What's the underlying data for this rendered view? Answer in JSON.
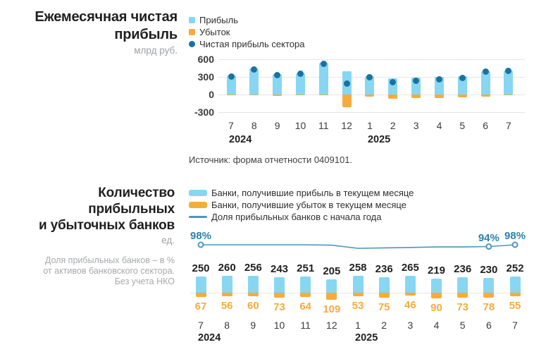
{
  "colors": {
    "profit_blue": "#87D7F3",
    "loss_orange": "#F6AC3B",
    "net_dot_blue": "#1973A2",
    "share_line": "#4C96BC",
    "pct_label": "#2E81A8",
    "title_text": "#1F1F1F",
    "muted_text": "#A7A9AC",
    "axis_text": "#3A3A3A",
    "gridline": "#E6E6E6"
  },
  "top_chart": {
    "title": "Ежемесячная чистая\nприбыль",
    "unit": "млрд руб.",
    "legend": [
      {
        "label": "Прибыль"
      },
      {
        "label": "Убыток"
      },
      {
        "label": "Чистая прибыль сектора"
      }
    ],
    "source": "Источник: форма отчетности 0409101."
  },
  "bottom_chart": {
    "title": "Количество\nприбыльных\nи убыточных банков",
    "unit": "ед.",
    "note": "Доля прибыльных банков – в %\nот активов банковского сектора.\nБез учета НКО",
    "legend": [
      {
        "label": "Банки, получившие прибыль в текущем месяце"
      },
      {
        "label": "Банки, получившие убыток в текущем месяце"
      },
      {
        "label": "Доля прибыльных банков с начала года"
      }
    ]
  },
  "chart_data": [
    {
      "type": "bar",
      "title": "Ежемесячная чистая прибыль",
      "ylabel": "млрд руб.",
      "categories": [
        "7",
        "8",
        "9",
        "10",
        "11",
        "12",
        "1",
        "2",
        "3",
        "4",
        "5",
        "6",
        "7"
      ],
      "year_marks": [
        {
          "label": "2024",
          "index": 0
        },
        {
          "label": "2025",
          "index": 6
        }
      ],
      "ylim": [
        -300,
        600
      ],
      "yticks": [
        600,
        300,
        0,
        -300
      ],
      "grid": true,
      "legend_position": "top-right",
      "series": [
        {
          "name": "Прибыль",
          "type": "bar",
          "color_key": "profit_blue",
          "values": [
            325,
            440,
            350,
            365,
            535,
            400,
            310,
            280,
            290,
            300,
            315,
            400,
            405
          ]
        },
        {
          "name": "Убыток",
          "type": "bar",
          "color_key": "loss_orange",
          "values": [
            -15,
            -10,
            -25,
            -15,
            -10,
            -215,
            -30,
            -70,
            -55,
            -60,
            -45,
            -35,
            -10
          ]
        },
        {
          "name": "Чистая прибыль сектора",
          "type": "point",
          "color_key": "net_dot_blue",
          "values": [
            305,
            430,
            335,
            350,
            520,
            190,
            290,
            215,
            240,
            255,
            285,
            390,
            400
          ]
        }
      ]
    },
    {
      "type": "bar",
      "title": "Количество прибыльных и убыточных банков",
      "ylabel": "ед.",
      "categories": [
        "7",
        "8",
        "9",
        "10",
        "11",
        "12",
        "1",
        "2",
        "3",
        "4",
        "5",
        "6",
        "7"
      ],
      "year_marks": [
        {
          "label": "2024",
          "index": 0
        },
        {
          "label": "2025",
          "index": 6
        }
      ],
      "grid": true,
      "legend_position": "top-right",
      "series": [
        {
          "name": "Банки, получившие прибыль в текущем месяце",
          "type": "bar",
          "color_key": "profit_blue",
          "data_labels": true,
          "values": [
            250,
            260,
            256,
            243,
            251,
            205,
            258,
            236,
            265,
            219,
            236,
            230,
            252
          ]
        },
        {
          "name": "Банки, получившие убыток в текущем месяце",
          "type": "bar",
          "color_key": "loss_orange",
          "data_labels": true,
          "values": [
            67,
            56,
            60,
            73,
            64,
            109,
            53,
            75,
            46,
            90,
            73,
            78,
            55
          ]
        },
        {
          "name": "Доля прибыльных банков с начала года",
          "type": "line",
          "unit": "%",
          "color_key": "share_line",
          "values": [
            98,
            98,
            98,
            98,
            98,
            97,
            90,
            91,
            92,
            93,
            93,
            94,
            98
          ],
          "labeled_points": [
            {
              "index": 0,
              "label": "98%"
            },
            {
              "index": 11,
              "label": "94%"
            },
            {
              "index": 12,
              "label": "98%"
            }
          ]
        }
      ]
    }
  ]
}
